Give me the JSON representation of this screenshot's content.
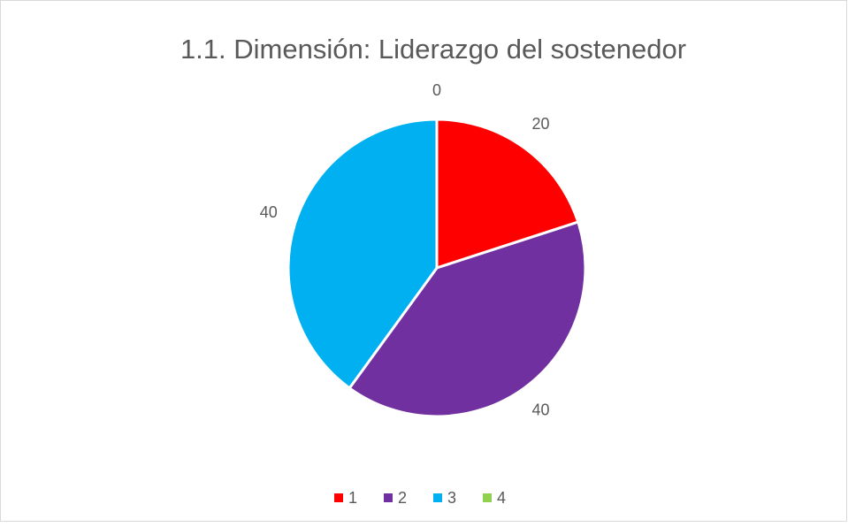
{
  "chart_data": {
    "type": "pie",
    "title": "1.1. Dimensión: Liderazgo del sostenedor",
    "categories": [
      "1",
      "2",
      "3",
      "4"
    ],
    "values": [
      20,
      40,
      40,
      0
    ],
    "colors": [
      "#ff0000",
      "#7030a0",
      "#00b0f0",
      "#92d050"
    ],
    "legend": "bottom"
  }
}
